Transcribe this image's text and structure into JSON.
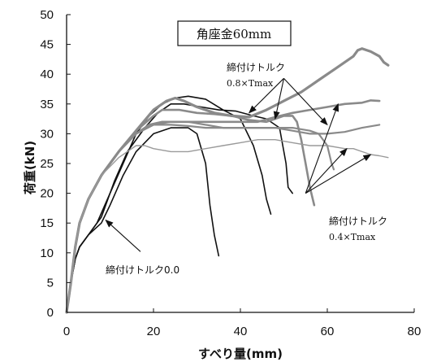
{
  "chart_data": {
    "type": "line",
    "title": "角座金60mm",
    "xlabel": "すべり量(mm)",
    "ylabel": "荷重(kN)",
    "xlim": [
      0,
      80
    ],
    "ylim": [
      0,
      50
    ],
    "x_ticks": [
      "0",
      "20",
      "40",
      "60",
      "80"
    ],
    "y_ticks": [
      "0",
      "5",
      "10",
      "15",
      "20",
      "25",
      "30",
      "35",
      "40",
      "45",
      "50"
    ],
    "grid": false,
    "legend": "none",
    "series": [
      {
        "group": "0.0",
        "color": "#111111",
        "width": 1.6,
        "x": [
          0,
          1,
          2,
          3,
          5,
          8,
          10,
          13,
          16,
          20,
          24,
          28,
          30,
          32,
          33,
          34,
          35
        ],
        "y": [
          0,
          5,
          9,
          11,
          13,
          15,
          18,
          23,
          27,
          30,
          31,
          31,
          30,
          25,
          18,
          13,
          9.5
        ]
      },
      {
        "group": "0.0",
        "color": "#111111",
        "width": 1.6,
        "x": [
          0,
          1,
          2,
          3,
          5,
          7,
          10,
          13,
          16,
          19,
          22,
          25,
          28,
          32,
          36,
          40,
          43,
          45,
          46,
          47
        ],
        "y": [
          0,
          5,
          9,
          11,
          13,
          15,
          20,
          25,
          30,
          33,
          35,
          36,
          36.3,
          35.8,
          34,
          32.5,
          28,
          23,
          19,
          16.5
        ]
      },
      {
        "group": "0.0",
        "color": "#111111",
        "width": 1.6,
        "x": [
          0,
          1,
          2,
          3,
          5,
          8,
          11,
          14,
          18,
          21,
          24,
          27,
          31,
          35,
          39,
          43,
          46,
          49,
          50.5,
          51,
          52
        ],
        "y": [
          0,
          5,
          9,
          11,
          13,
          16,
          22,
          27,
          31,
          33.5,
          35,
          35,
          34.5,
          34,
          33.8,
          33,
          32.5,
          31,
          25,
          21,
          20
        ]
      },
      {
        "group": "0.8×Tmax",
        "color": "#8a8a8a",
        "width": 3.2,
        "x": [
          0,
          1,
          2,
          3,
          5,
          8,
          12,
          16,
          20,
          23,
          25,
          27,
          30,
          34,
          38,
          42,
          46,
          50,
          54,
          58,
          62,
          64,
          66,
          67,
          68,
          70,
          72,
          73,
          74
        ],
        "y": [
          0,
          5,
          11,
          15,
          19,
          23,
          27,
          30.5,
          34,
          35.5,
          36,
          35.5,
          34.5,
          33.5,
          33,
          32.8,
          34,
          35.5,
          37,
          39,
          41,
          42,
          43,
          44,
          44.3,
          43.8,
          43,
          42,
          41.5
        ]
      },
      {
        "group": "0.8×Tmax",
        "color": "#8a8a8a",
        "width": 2.6,
        "x": [
          0,
          1,
          2,
          3,
          5,
          8,
          12,
          16,
          20,
          22,
          24,
          26,
          30,
          34,
          38,
          42,
          46,
          48,
          50,
          52,
          53,
          54,
          55,
          56,
          57
        ],
        "y": [
          0,
          5,
          11,
          15,
          19,
          23,
          27,
          30.5,
          33,
          34,
          34,
          34,
          33.5,
          33.3,
          33,
          32.3,
          32,
          32.5,
          33,
          33,
          32,
          29,
          25,
          21,
          18
        ]
      },
      {
        "group": "0.8×Tmax",
        "color": "#8a8a8a",
        "width": 2.6,
        "x": [
          0,
          1,
          2,
          3,
          5,
          8,
          12,
          16,
          19,
          22,
          26,
          30,
          35,
          40,
          44,
          48,
          52,
          56,
          60,
          64,
          68,
          70,
          72
        ],
        "y": [
          0,
          5,
          11,
          15,
          19,
          23,
          27,
          30,
          31.5,
          32,
          32,
          32,
          32,
          32,
          32,
          32.8,
          33.5,
          34,
          34.5,
          35,
          35.2,
          35.6,
          35.5
        ]
      },
      {
        "group": "0.4×Tmax",
        "color": "#8a8a8a",
        "width": 2.2,
        "x": [
          0,
          1,
          2,
          3,
          5,
          8,
          12,
          16,
          20,
          24,
          28,
          32,
          36,
          40,
          44,
          48,
          52,
          56,
          58,
          60,
          61,
          61.5
        ],
        "y": [
          0,
          5,
          11,
          15,
          19,
          23,
          27,
          30,
          31.5,
          32,
          32,
          31.5,
          31,
          31,
          31,
          31,
          31,
          30.5,
          30,
          28,
          25,
          24
        ]
      },
      {
        "group": "0.4×Tmax",
        "color": "#8a8a8a",
        "width": 2.2,
        "x": [
          0,
          1,
          2,
          3,
          5,
          8,
          12,
          16,
          20,
          24,
          28,
          32,
          36,
          40,
          44,
          48,
          52,
          56,
          60,
          64,
          68,
          72
        ],
        "y": [
          0,
          5,
          11,
          15,
          19,
          23,
          27,
          30,
          31.5,
          31.5,
          31.3,
          31,
          31,
          31,
          31,
          31,
          30.5,
          30,
          30,
          30.3,
          31,
          31.5
        ]
      },
      {
        "group": "0.4×Tmax",
        "color": "#9a9a9a",
        "width": 1.4,
        "x": [
          0,
          1,
          2,
          3,
          5,
          8,
          12,
          16,
          18,
          20,
          24,
          28,
          32,
          36,
          40,
          44,
          48,
          52,
          56,
          60,
          64,
          66,
          68,
          70,
          72,
          74
        ],
        "y": [
          0,
          5,
          11,
          15,
          19,
          23,
          26,
          28,
          28,
          27.5,
          27,
          27,
          27.5,
          28,
          28.5,
          29,
          29,
          28.5,
          28,
          28,
          27.5,
          27.5,
          27,
          26.5,
          26.3,
          26
        ]
      }
    ],
    "annotations": [
      {
        "text": "締付けトルク",
        "sub": "0.8×Tmax",
        "target_text": "締付けトルク 0.8×Tmax",
        "label_at": [
          20,
          41.5
        ],
        "arrow_from": [
          50,
          39.3
        ],
        "arrows_to": [
          [
            42,
            33.5
          ],
          [
            48,
            32.5
          ],
          [
            60,
            31.5
          ]
        ]
      },
      {
        "text": "締付けトルク",
        "sub": "0.4×Tmax",
        "label_at": [
          48,
          15.5
        ],
        "arrow_from": [
          55,
          20
        ],
        "arrows_to": [
          [
            62.5,
            35
          ],
          [
            64.5,
            27.5
          ],
          [
            70,
            26.5
          ]
        ]
      },
      {
        "text": "締付けトルク0.0",
        "label_at": [
          19.5,
          7.3
        ],
        "arrow_from": [
          17,
          10.2
        ],
        "arrows_to": [
          [
            9,
            15.5
          ]
        ]
      }
    ]
  }
}
